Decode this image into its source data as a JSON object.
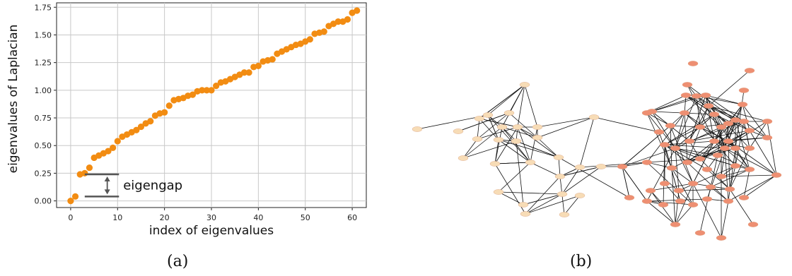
{
  "chart_data": {
    "type": "scatter",
    "title": "",
    "xlabel": "index of eigenvalues",
    "ylabel": "eigenvalues of Laplacian",
    "xlim": [
      -3,
      63
    ],
    "ylim": [
      -0.06,
      1.79
    ],
    "xticks": [
      "0",
      "10",
      "20",
      "30",
      "40",
      "50",
      "60"
    ],
    "yticks": [
      "0.00",
      "0.25",
      "0.50",
      "0.75",
      "1.00",
      "1.25",
      "1.50",
      "1.75"
    ],
    "grid": true,
    "color": "#f28c12",
    "x": [
      0,
      1,
      2,
      3,
      4,
      5,
      6,
      7,
      8,
      9,
      10,
      11,
      12,
      13,
      14,
      15,
      16,
      17,
      18,
      19,
      20,
      21,
      22,
      23,
      24,
      25,
      26,
      27,
      28,
      29,
      30,
      31,
      32,
      33,
      34,
      35,
      36,
      37,
      38,
      39,
      40,
      41,
      42,
      43,
      44,
      45,
      46,
      47,
      48,
      49,
      50,
      51,
      52,
      53,
      54,
      55,
      56,
      57,
      58,
      59,
      60,
      61
    ],
    "values": [
      0.0,
      0.04,
      0.24,
      0.25,
      0.3,
      0.39,
      0.41,
      0.43,
      0.45,
      0.48,
      0.54,
      0.58,
      0.6,
      0.62,
      0.64,
      0.67,
      0.7,
      0.72,
      0.77,
      0.79,
      0.8,
      0.86,
      0.91,
      0.92,
      0.93,
      0.95,
      0.96,
      0.99,
      1.0,
      1.0,
      1.0,
      1.04,
      1.07,
      1.08,
      1.1,
      1.12,
      1.14,
      1.16,
      1.16,
      1.21,
      1.22,
      1.26,
      1.27,
      1.28,
      1.33,
      1.35,
      1.37,
      1.39,
      1.41,
      1.42,
      1.44,
      1.46,
      1.51,
      1.52,
      1.53,
      1.58,
      1.6,
      1.62,
      1.62,
      1.64,
      1.7,
      1.72
    ],
    "annotation": {
      "text": "eigengap",
      "from": 0.04,
      "to": 0.24
    }
  },
  "captions": {
    "a": "(a)",
    "b": "(b)"
  },
  "network": {
    "node_color_light": "#f7dcb6",
    "node_color_dark": "#ee8f72",
    "edge_color": "#111111"
  }
}
